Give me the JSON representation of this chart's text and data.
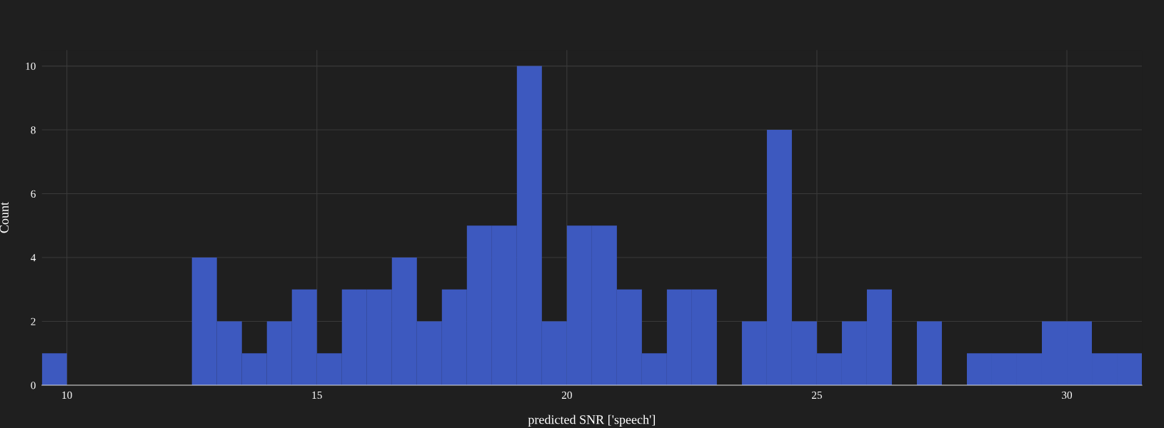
{
  "chart_data": {
    "type": "histogram",
    "xlabel": "predicted SNR ['speech']",
    "ylabel": "Count",
    "bins": [
      9.5,
      10,
      10.5,
      11,
      11.5,
      12,
      12.5,
      13,
      13.5,
      14,
      14.5,
      15,
      15.5,
      16,
      16.5,
      17,
      17.5,
      18,
      18.5,
      19,
      19.5,
      20,
      20.5,
      21,
      21.5,
      22,
      22.5,
      23,
      23.5,
      24,
      24.5,
      25,
      25.5,
      26,
      26.5,
      27,
      27.5,
      28,
      28.5,
      29,
      29.5,
      30,
      30.5,
      31,
      31.5
    ],
    "values": [
      1,
      0,
      0,
      0,
      0,
      0,
      4,
      2,
      1,
      2,
      3,
      1,
      3,
      3,
      4,
      2,
      3,
      5,
      5,
      10,
      2,
      5,
      5,
      3,
      1,
      3,
      3,
      0,
      2,
      8,
      2,
      1,
      2,
      3,
      0,
      2,
      0,
      1,
      1,
      1,
      2,
      2,
      1,
      1
    ],
    "color": "#3d59bf",
    "xlim": [
      9.5,
      31.5
    ],
    "xticks": [
      10,
      15,
      20,
      25,
      30
    ],
    "ylim": [
      0,
      10.5
    ],
    "yticks": [
      0,
      2,
      4,
      6,
      8,
      10
    ],
    "grid": true
  }
}
